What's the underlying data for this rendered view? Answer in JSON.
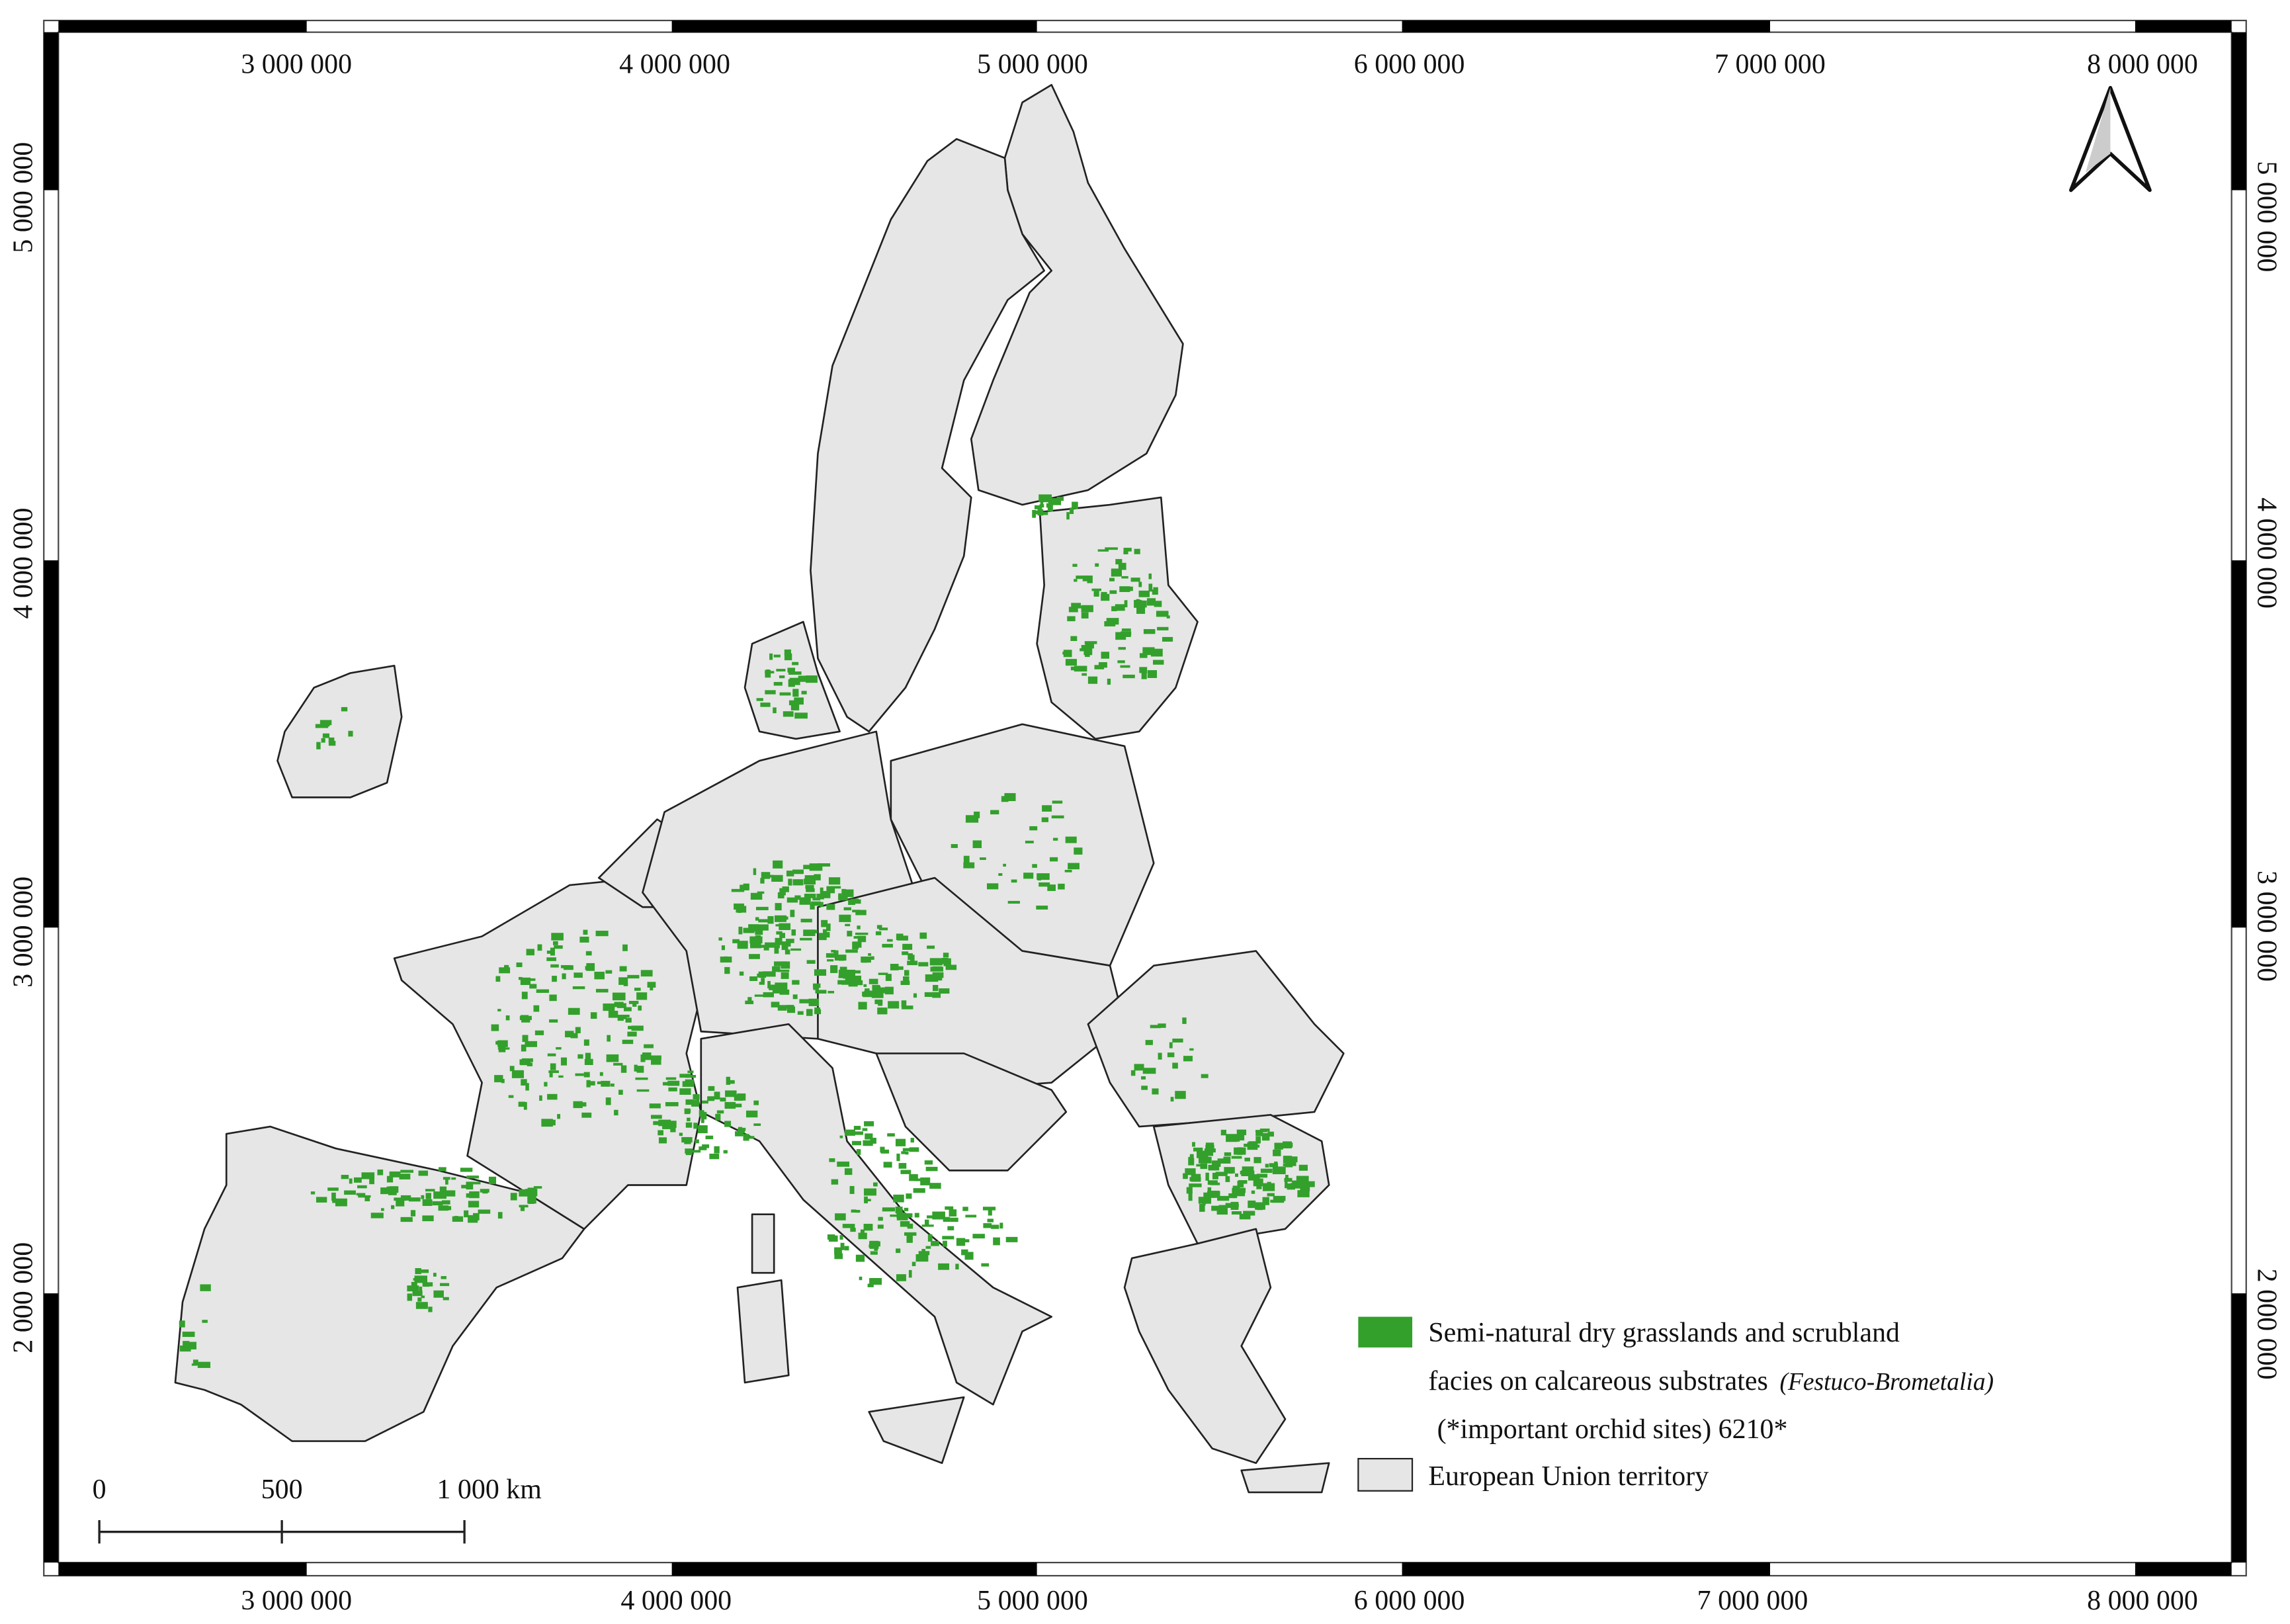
{
  "frame": {
    "top_labels": [
      "3 000 000",
      "4 000 000",
      "5 000 000",
      "6 000 000",
      "7 000 000",
      "8 000 000"
    ],
    "bottom_labels": [
      "3 000 000",
      "4 000 000",
      "5 000 000",
      "6 000 000",
      "7 000 000",
      "8 000 000"
    ],
    "left_labels": [
      "5 000 000",
      "4 000 000",
      "3 000 000",
      "2 000 000"
    ],
    "right_labels": [
      "5 000 000",
      "4 000 000",
      "3 000 000",
      "2 000 000"
    ]
  },
  "legend": {
    "habitat": {
      "line1": "Semi-natural dry grasslands and scrubland",
      "line2": "facies on calcareous substrates",
      "taxon": "(Festuco-Brometalia)",
      "line3": "(*important orchid sites) 6210*"
    },
    "territory": "European Union territory"
  },
  "scale_bar": {
    "labels": [
      "0",
      "500",
      "1 000 km"
    ]
  }
}
